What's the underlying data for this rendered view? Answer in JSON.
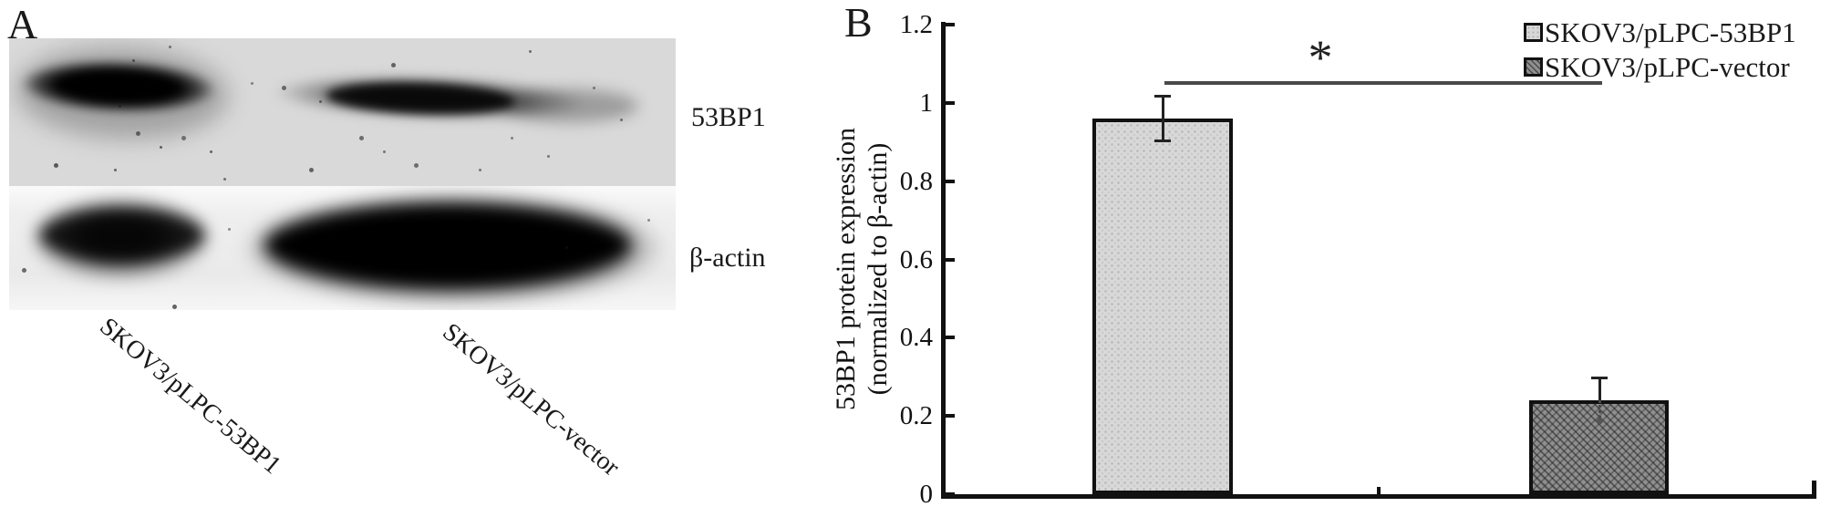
{
  "figure": {
    "panel_a": {
      "label": "A",
      "blot_targets": [
        "53BP1",
        "β-actin"
      ],
      "lane_labels": [
        "SKOV3/pLPC-53BP1",
        "SKOV3/pLPC-vector"
      ]
    },
    "panel_b": {
      "label": "B"
    }
  },
  "chart_data": {
    "type": "bar",
    "categories": [
      "SKOV3/pLPC-53BP1",
      "SKOV3/pLPC-vector"
    ],
    "values": [
      0.96,
      0.24
    ],
    "errors": [
      0.06,
      0.06
    ],
    "ylabel_lines": [
      "53BP1 protein expression",
      "(normalized to β-actin)"
    ],
    "yticks": [
      "0",
      "0.2",
      "0.4",
      "0.6",
      "0.8",
      "1",
      "1.2"
    ],
    "ylim": [
      0,
      1.2
    ],
    "grid": false,
    "legend": [
      "SKOV3/pLPC-53BP1",
      "SKOV3/pLPC-vector"
    ],
    "legend_position": "top-right",
    "annotations": [
      {
        "type": "significance-bar",
        "label": "*",
        "between": [
          "SKOV3/pLPC-53BP1",
          "SKOV3/pLPC-vector"
        ]
      }
    ],
    "colors": {
      "bar_53bp1": "#d8d8d8",
      "bar_vector": "#8f8f8f",
      "axis": "#111111",
      "sig_line": "#4a4a4a"
    }
  }
}
